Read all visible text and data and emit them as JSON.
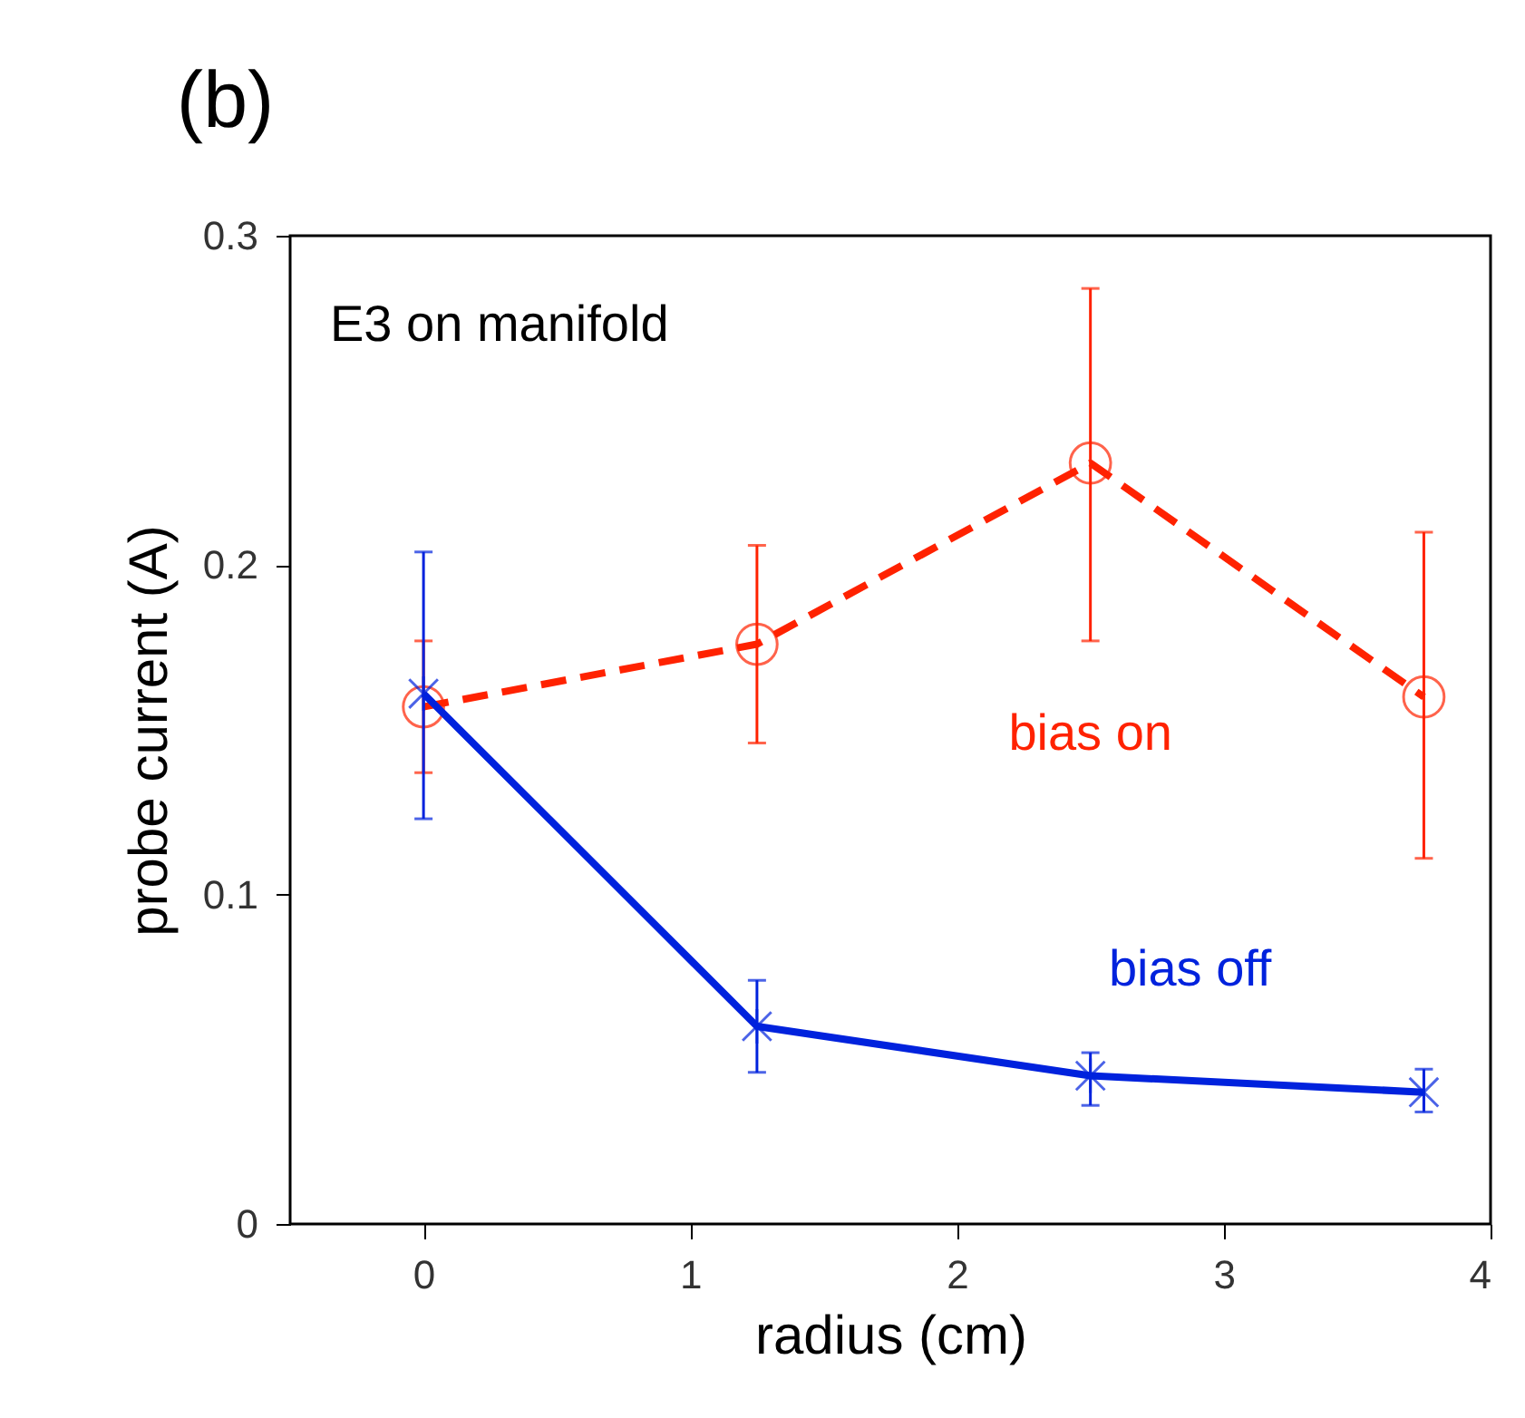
{
  "chart_data": {
    "type": "line",
    "title": "(b)",
    "xlabel": "radius (cm)",
    "ylabel": "probe current (A)",
    "x": [
      0,
      1.25,
      2.5,
      3.75
    ],
    "series": [
      {
        "name": "bias on",
        "color": "#ff2200",
        "values": [
          0.157,
          0.176,
          0.231,
          0.16
        ],
        "errors": [
          [
            0.137,
            0.177
          ],
          [
            0.146,
            0.206
          ],
          [
            0.177,
            0.284
          ],
          [
            0.111,
            0.21
          ]
        ],
        "marker": "circle",
        "line_style": "dashed"
      },
      {
        "name": "bias off",
        "color": "#0022dd",
        "values": [
          0.161,
          0.06,
          0.045,
          0.04
        ],
        "errors": [
          [
            0.123,
            0.204
          ],
          [
            0.046,
            0.074
          ],
          [
            0.036,
            0.052
          ],
          [
            0.034,
            0.047
          ]
        ],
        "marker": "cross",
        "line_style": "solid"
      }
    ],
    "annotations": [
      "E3 on manifold"
    ],
    "xlim": [
      -0.5,
      4
    ],
    "xticks": [
      0,
      1,
      2,
      3,
      4
    ],
    "ylim": [
      0,
      0.3
    ],
    "yticks": [
      0,
      0.1,
      0.2,
      0.3
    ],
    "grid": false
  }
}
